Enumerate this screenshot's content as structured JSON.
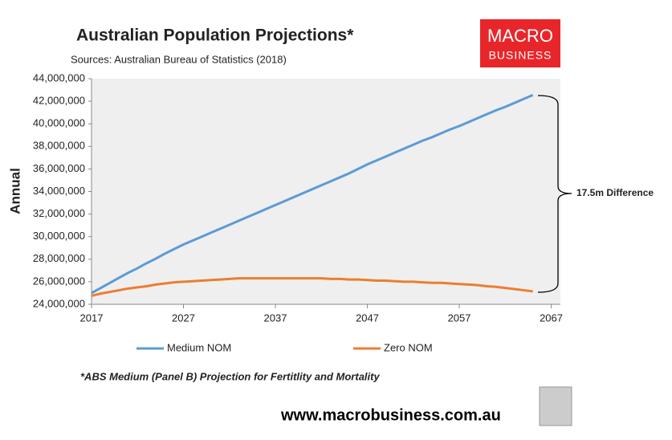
{
  "chart_data": {
    "type": "line",
    "title": "Australian Population Projections*",
    "subtitle": "Sources: Australian Bureau of Statistics (2018)",
    "y_label": "Annual",
    "annotation": "17.5m Difference",
    "footnote": "*ABS Medium (Panel B) Projection for Fertitlity and Mortality",
    "website": "www.macrobusiness.com.au",
    "logo": [
      "MACRO",
      "BUSINESS"
    ],
    "x": [
      2017,
      2018,
      2019,
      2020,
      2021,
      2022,
      2023,
      2024,
      2025,
      2026,
      2027,
      2028,
      2029,
      2030,
      2031,
      2032,
      2033,
      2034,
      2035,
      2036,
      2037,
      2038,
      2039,
      2040,
      2041,
      2042,
      2043,
      2044,
      2045,
      2046,
      2047,
      2048,
      2049,
      2050,
      2051,
      2052,
      2053,
      2054,
      2055,
      2056,
      2057,
      2058,
      2059,
      2060,
      2061,
      2062,
      2063,
      2064,
      2065
    ],
    "series": [
      {
        "name": "Medium NOM",
        "color": "#5b9bd5",
        "values": [
          25000000,
          25450000,
          25900000,
          26350000,
          26800000,
          27200000,
          27650000,
          28050000,
          28500000,
          28900000,
          29300000,
          29650000,
          30000000,
          30350000,
          30700000,
          31050000,
          31400000,
          31750000,
          32100000,
          32450000,
          32800000,
          33150000,
          33500000,
          33850000,
          34200000,
          34550000,
          34900000,
          35250000,
          35600000,
          36000000,
          36400000,
          36750000,
          37100000,
          37450000,
          37800000,
          38150000,
          38500000,
          38800000,
          39150000,
          39500000,
          39800000,
          40150000,
          40500000,
          40850000,
          41200000,
          41500000,
          41850000,
          42200000,
          42550000
        ]
      },
      {
        "name": "Zero NOM",
        "color": "#ed7d31",
        "values": [
          24750000,
          24950000,
          25100000,
          25250000,
          25400000,
          25500000,
          25600000,
          25750000,
          25850000,
          25950000,
          26000000,
          26050000,
          26100000,
          26150000,
          26200000,
          26250000,
          26300000,
          26300000,
          26300000,
          26300000,
          26300000,
          26300000,
          26300000,
          26300000,
          26300000,
          26300000,
          26250000,
          26250000,
          26200000,
          26200000,
          26150000,
          26100000,
          26100000,
          26050000,
          26000000,
          26000000,
          25950000,
          25900000,
          25900000,
          25850000,
          25800000,
          25750000,
          25700000,
          25600000,
          25550000,
          25450000,
          25350000,
          25250000,
          25150000
        ]
      }
    ],
    "xlim": [
      2017,
      2068
    ],
    "xticks": [
      2017,
      2027,
      2037,
      2047,
      2057,
      2067
    ],
    "ylim": [
      24000000,
      44000000
    ],
    "yticks": [
      {
        "value": 24000000,
        "label": "24,000,000"
      },
      {
        "value": 26000000,
        "label": "26,000,000"
      },
      {
        "value": 28000000,
        "label": "28,000,000"
      },
      {
        "value": 30000000,
        "label": "30,000,000"
      },
      {
        "value": 32000000,
        "label": "32,000,000"
      },
      {
        "value": 34000000,
        "label": "34,000,000"
      },
      {
        "value": 36000000,
        "label": "36,000,000"
      },
      {
        "value": 38000000,
        "label": "38,000,000"
      },
      {
        "value": 40000000,
        "label": "40,000,000"
      },
      {
        "value": 42000000,
        "label": "42,000,000"
      },
      {
        "value": 44000000,
        "label": "44,000,000"
      }
    ]
  }
}
